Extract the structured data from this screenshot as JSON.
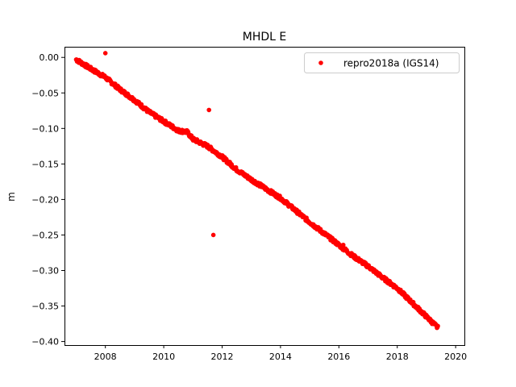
{
  "chart_data": {
    "type": "scatter",
    "title": "MHDL E",
    "xlabel": "",
    "ylabel": "m",
    "xlim": [
      2006.6,
      2020.3
    ],
    "ylim": [
      -0.405,
      0.015
    ],
    "xticks": [
      2008,
      2010,
      2012,
      2014,
      2016,
      2018,
      2020
    ],
    "xtick_labels": [
      "2008",
      "2010",
      "2012",
      "2014",
      "2016",
      "2018",
      "2020"
    ],
    "yticks": [
      0.0,
      -0.05,
      -0.1,
      -0.15,
      -0.2,
      -0.25,
      -0.3,
      -0.35,
      -0.4
    ],
    "ytick_labels": [
      "0.00",
      "−0.05",
      "−0.10",
      "−0.15",
      "−0.20",
      "−0.25",
      "−0.30",
      "−0.35",
      "−0.40"
    ],
    "grid": false,
    "legend_position": "top-right",
    "series": [
      {
        "name": "repro2018a (IGS14)",
        "color": "#ff0000",
        "marker": "circle",
        "trend": {
          "x": [
            2007.0,
            2007.5,
            2008.0,
            2008.5,
            2009.0,
            2009.5,
            2010.0,
            2010.5,
            2010.8,
            2011.0,
            2011.5,
            2012.0,
            2012.5,
            2013.0,
            2013.5,
            2014.0,
            2014.5,
            2015.0,
            2015.5,
            2016.0,
            2016.5,
            2017.0,
            2017.5,
            2018.0,
            2018.5,
            2019.0,
            2019.4
          ],
          "y": [
            -0.003,
            -0.016,
            -0.028,
            -0.045,
            -0.06,
            -0.077,
            -0.09,
            -0.103,
            -0.105,
            -0.115,
            -0.125,
            -0.14,
            -0.158,
            -0.172,
            -0.185,
            -0.198,
            -0.215,
            -0.232,
            -0.248,
            -0.264,
            -0.28,
            -0.294,
            -0.31,
            -0.325,
            -0.345,
            -0.365,
            -0.381
          ]
        },
        "outliers": {
          "x": [
            2008.0,
            2011.55,
            2011.7,
            2016.15
          ],
          "y": [
            0.006,
            -0.074,
            -0.25,
            -0.264
          ]
        }
      }
    ]
  }
}
